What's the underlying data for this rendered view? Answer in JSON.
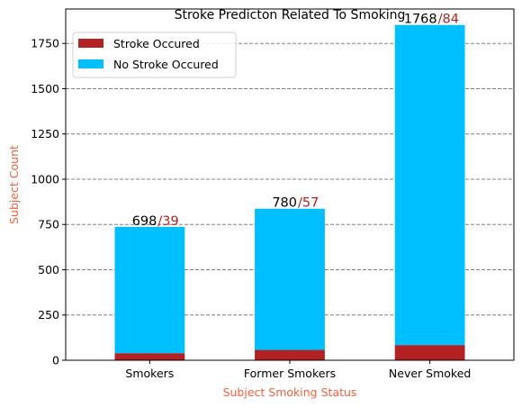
{
  "chart_data": {
    "type": "bar",
    "stacked": true,
    "title": "Stroke Predicton Related To Smoking",
    "xlabel": "Subject Smoking Status",
    "ylabel": "Subject Count",
    "label_color": "#f4603c",
    "categories": [
      "Smokers",
      "Former Smokers",
      "Never Smoked"
    ],
    "series": [
      {
        "name": "Stroke Occured",
        "values": [
          39,
          57,
          84
        ],
        "color": "#b22222"
      },
      {
        "name": "No Stroke Occured",
        "values": [
          698,
          780,
          1768
        ],
        "color": "#00bfff"
      }
    ],
    "annotations": [
      {
        "no_stroke": "698",
        "stroke": "/39"
      },
      {
        "no_stroke": "780",
        "stroke": "/57"
      },
      {
        "no_stroke": "1768",
        "stroke": "/84"
      }
    ],
    "ylim": [
      0,
      1940
    ],
    "yticks": [
      "0",
      "250",
      "500",
      "750",
      "1000",
      "1250",
      "1500",
      "1750"
    ],
    "grid": "y-dashed",
    "legend_position": "top-left"
  }
}
